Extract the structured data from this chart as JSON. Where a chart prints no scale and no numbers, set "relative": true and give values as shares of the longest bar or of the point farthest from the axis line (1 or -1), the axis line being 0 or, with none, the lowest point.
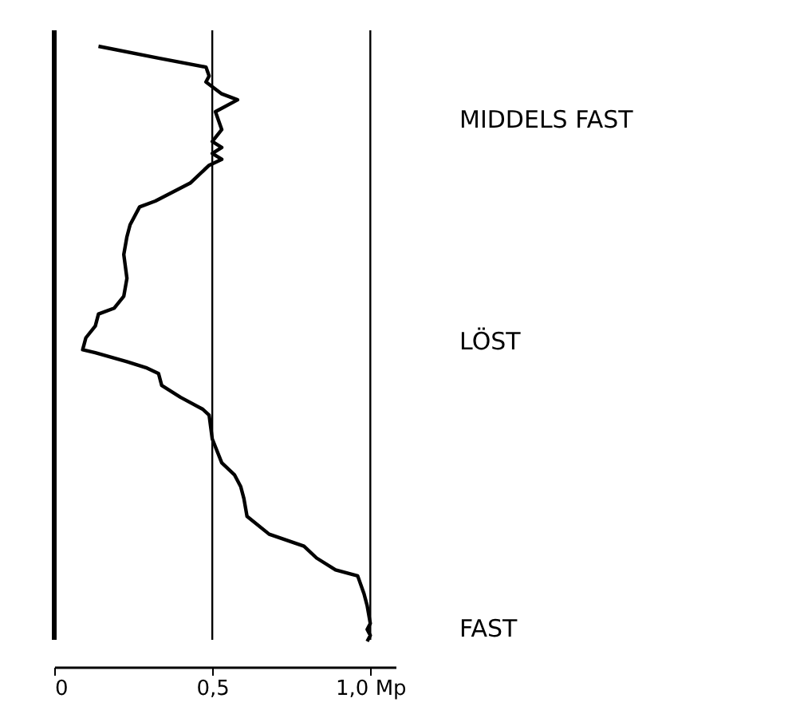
{
  "chart_data": {
    "type": "line",
    "relative": true,
    "x": [
      0.14,
      0.33,
      0.48,
      0.49,
      0.48,
      0.53,
      0.58,
      0.51,
      0.53,
      0.5,
      0.53,
      0.5,
      0.53,
      0.49,
      0.43,
      0.32,
      0.27,
      0.24,
      0.23,
      0.22,
      0.23,
      0.22,
      0.19,
      0.14,
      0.13,
      0.1,
      0.09,
      0.13,
      0.23,
      0.29,
      0.33,
      0.34,
      0.4,
      0.47,
      0.49,
      0.5,
      0.53,
      0.57,
      0.59,
      0.6,
      0.61,
      0.68,
      0.79,
      0.83,
      0.89,
      0.96,
      0.98,
      0.99,
      1.0,
      0.99,
      1.0,
      0.99
    ],
    "series": [
      {
        "color": "#000000",
        "values": [
          1.0,
          0.98,
          0.965,
          0.95,
          0.94,
          0.92,
          0.91,
          0.89,
          0.86,
          0.84,
          0.83,
          0.82,
          0.81,
          0.8,
          0.77,
          0.74,
          0.73,
          0.7,
          0.68,
          0.65,
          0.61,
          0.58,
          0.56,
          0.55,
          0.53,
          0.51,
          0.49,
          0.485,
          0.47,
          0.46,
          0.45,
          0.43,
          0.41,
          0.39,
          0.38,
          0.34,
          0.3,
          0.28,
          0.26,
          0.24,
          0.21,
          0.18,
          0.16,
          0.14,
          0.12,
          0.11,
          0.08,
          0.06,
          0.03,
          0.02,
          0.01,
          0.0
        ]
      }
    ],
    "xlim": [
      0,
      1.08
    ],
    "xticks": [
      {
        "value": 0,
        "label": "0"
      },
      {
        "value": 0.5,
        "label": "0,5"
      },
      {
        "value": 1,
        "label": "1,0 Mp"
      }
    ],
    "ref_lines": [
      {
        "axis": "x",
        "value": 0,
        "color": "#000000"
      },
      {
        "axis": "x",
        "value": 0.5,
        "color": "#000000"
      },
      {
        "axis": "x",
        "value": 1,
        "color": "#000000"
      }
    ],
    "annotations": [
      "MIDDELS FAST",
      "LÖST",
      "FAST"
    ],
    "grid": false,
    "marker": "none",
    "line_style": "solid"
  }
}
